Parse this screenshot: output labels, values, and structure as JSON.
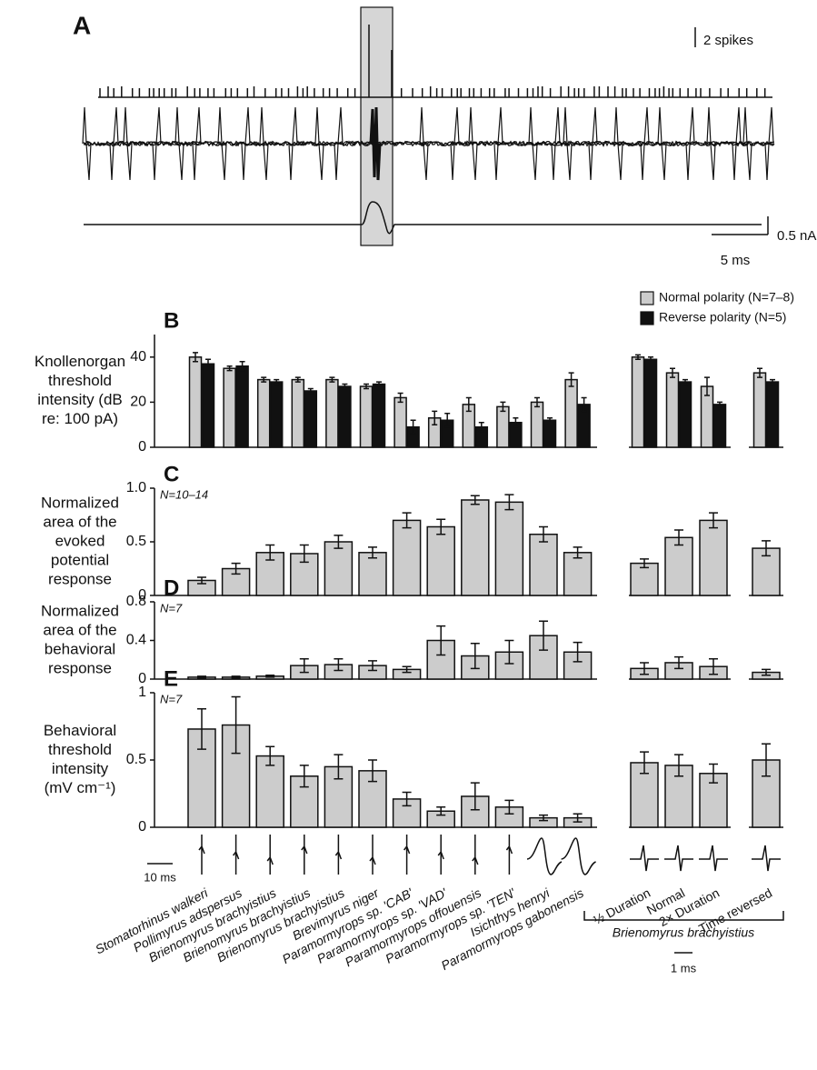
{
  "panel_a": {
    "label": "A",
    "scale_bars": [
      "2 spikes",
      "0.5 nA",
      "5 ms"
    ]
  },
  "x_axis": {
    "species": [
      "Stomatorhinus walkeri",
      "Pollimyrus adspersus",
      "Brienomyrus brachyistius",
      "Brienomyrus brachyistius",
      "Brienomyrus brachyistius",
      "Brevimyrus niger",
      "Paramormyrops sp. 'CAB'",
      "Paramormyrops sp. 'VAD'",
      "Paramormyrops offouensis",
      "Paramormyrops sp. 'TEN'",
      "Isichthys henryi",
      "Paramormyrops gabonensis"
    ],
    "stimuli": [
      "½ Duration",
      "Normal",
      "2× Duration",
      "Time reversed"
    ],
    "group_label": "Brienomyrus brachyistius",
    "scale_bars": [
      "10 ms",
      "1 ms"
    ]
  },
  "chart_data": [
    {
      "type": "bar",
      "panel_label": "B",
      "y_label_lines": [
        "Knollenorgan",
        "threshold",
        "intensity (dB",
        "re: 100 pA)"
      ],
      "ylim": [
        0,
        50
      ],
      "yticks": [
        0,
        20,
        40
      ],
      "legend": "upper right",
      "series": [
        {
          "name": "Normal polarity (N=7–8)",
          "color": "#cccccc",
          "values": [
            40,
            35,
            30,
            30,
            30,
            27,
            22,
            13,
            19,
            18,
            20,
            30,
            40,
            33,
            27,
            33
          ],
          "errors": [
            2,
            1,
            1,
            1,
            1,
            1,
            2,
            3,
            3,
            2,
            2,
            3,
            1,
            2,
            4,
            2
          ]
        },
        {
          "name": "Reverse polarity (N=5)",
          "color": "#111111",
          "values": [
            37,
            36,
            29,
            25,
            27,
            28,
            9,
            12,
            9,
            11,
            12,
            19,
            39,
            29,
            19,
            29
          ],
          "errors": [
            2,
            2,
            1,
            1,
            1,
            1,
            3,
            3,
            2,
            2,
            1,
            3,
            1,
            1,
            1,
            1
          ]
        }
      ]
    },
    {
      "type": "bar",
      "panel_label": "C",
      "annotation": "N=10–14",
      "y_label_lines": [
        "Normalized",
        "area of the",
        "evoked",
        "potential",
        "response"
      ],
      "ylim": [
        0,
        1
      ],
      "yticks": [
        0,
        0.5,
        {
          "value": 1,
          "label": "1.0"
        }
      ],
      "series": [
        {
          "color": "#cccccc",
          "values": [
            0.14,
            0.25,
            0.4,
            0.39,
            0.5,
            0.4,
            0.7,
            0.64,
            0.89,
            0.87,
            0.57,
            0.4,
            0.3,
            0.54,
            0.7,
            0.44
          ],
          "errors": [
            0.03,
            0.05,
            0.07,
            0.08,
            0.06,
            0.05,
            0.07,
            0.07,
            0.04,
            0.07,
            0.07,
            0.05,
            0.04,
            0.07,
            0.07,
            0.07
          ]
        }
      ]
    },
    {
      "type": "bar",
      "panel_label": "D",
      "annotation": "N=7",
      "y_label_lines": [
        "Normalized",
        "area of the",
        "behavioral",
        "response"
      ],
      "ylim": [
        0,
        0.8
      ],
      "yticks": [
        0,
        0.4,
        0.8
      ],
      "series": [
        {
          "color": "#cccccc",
          "values": [
            0.02,
            0.02,
            0.03,
            0.14,
            0.15,
            0.14,
            0.1,
            0.4,
            0.24,
            0.28,
            0.45,
            0.28,
            0.11,
            0.17,
            0.13,
            0.07
          ],
          "errors": [
            0.01,
            0.01,
            0.01,
            0.07,
            0.06,
            0.05,
            0.03,
            0.15,
            0.13,
            0.12,
            0.15,
            0.1,
            0.06,
            0.06,
            0.08,
            0.03
          ]
        }
      ]
    },
    {
      "type": "bar",
      "panel_label": "E",
      "annotation": "N=7",
      "y_label_lines": [
        "Behavioral",
        "threshold",
        "intensity",
        "(mV cm⁻¹)"
      ],
      "ylim": [
        0,
        1
      ],
      "yticks": [
        0,
        0.5,
        1
      ],
      "series": [
        {
          "color": "#cccccc",
          "values": [
            0.73,
            0.76,
            0.53,
            0.38,
            0.45,
            0.42,
            0.21,
            0.12,
            0.23,
            0.15,
            0.07,
            0.07,
            0.48,
            0.46,
            0.4,
            0.5
          ],
          "errors": [
            0.15,
            0.21,
            0.07,
            0.08,
            0.09,
            0.08,
            0.05,
            0.03,
            0.1,
            0.05,
            0.02,
            0.03,
            0.08,
            0.08,
            0.07,
            0.12
          ]
        }
      ]
    }
  ]
}
